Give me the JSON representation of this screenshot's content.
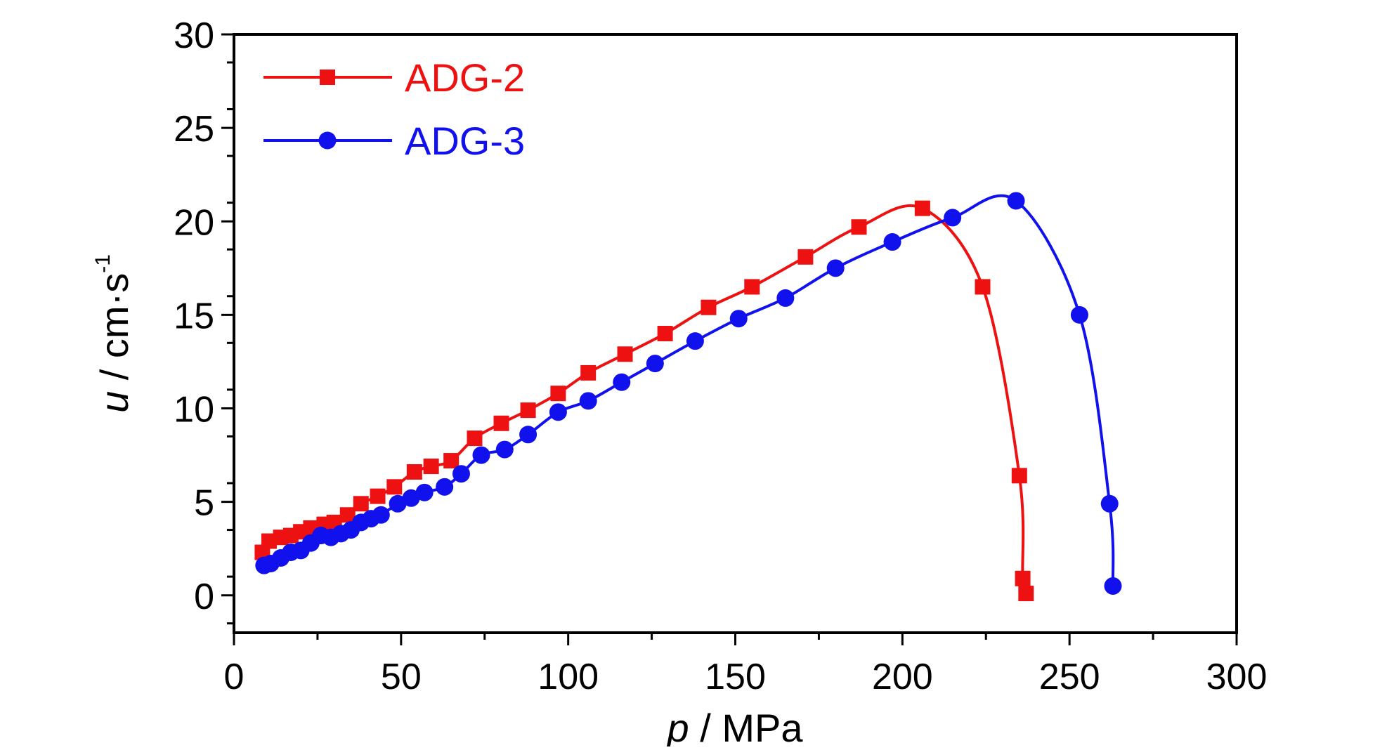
{
  "chart_data": {
    "type": "line",
    "xlabel_var": "p",
    "xlabel_unit": " / MPa",
    "ylabel_var": "u",
    "ylabel_unit": " / cm·s",
    "ylabel_sup": "-1",
    "xlim": [
      0,
      300
    ],
    "ylim": [
      -2,
      30
    ],
    "xticks": [
      0,
      50,
      100,
      150,
      200,
      250,
      300
    ],
    "yticks": [
      0,
      5,
      10,
      15,
      20,
      25,
      30
    ],
    "grid": false,
    "legend_position": "top-left",
    "series": [
      {
        "name": "ADG-2",
        "color": "#ee1111",
        "marker": "square",
        "x": [
          8.5,
          10.5,
          14,
          17,
          20,
          23,
          27,
          30,
          34,
          38,
          43,
          48,
          54,
          59,
          65,
          72,
          80,
          88,
          97,
          106,
          117,
          129,
          142,
          155,
          171,
          187,
          206,
          224,
          235,
          236,
          237
        ],
        "y": [
          2.3,
          2.9,
          3.1,
          3.2,
          3.4,
          3.6,
          3.8,
          3.9,
          4.3,
          4.9,
          5.3,
          5.8,
          6.6,
          6.9,
          7.2,
          8.4,
          9.2,
          9.9,
          10.8,
          11.9,
          12.9,
          14.0,
          15.4,
          16.5,
          18.1,
          19.7,
          20.7,
          16.5,
          6.4,
          0.9,
          0.1
        ]
      },
      {
        "name": "ADG-3",
        "color": "#1111ee",
        "marker": "circle",
        "x": [
          9,
          11,
          14,
          17,
          20,
          23,
          26,
          29,
          32,
          35,
          38,
          41,
          44,
          49,
          53,
          57,
          63,
          68,
          74,
          81,
          88,
          97,
          106,
          116,
          126,
          138,
          151,
          165,
          180,
          197,
          215,
          234,
          253,
          262,
          263
        ],
        "y": [
          1.6,
          1.7,
          2.0,
          2.3,
          2.4,
          2.8,
          3.2,
          3.1,
          3.3,
          3.5,
          3.9,
          4.1,
          4.3,
          4.9,
          5.2,
          5.5,
          5.8,
          6.5,
          7.5,
          7.8,
          8.6,
          9.8,
          10.4,
          11.4,
          12.4,
          13.6,
          14.8,
          15.9,
          17.5,
          18.9,
          20.2,
          21.1,
          15.0,
          4.9,
          0.5
        ]
      }
    ]
  }
}
